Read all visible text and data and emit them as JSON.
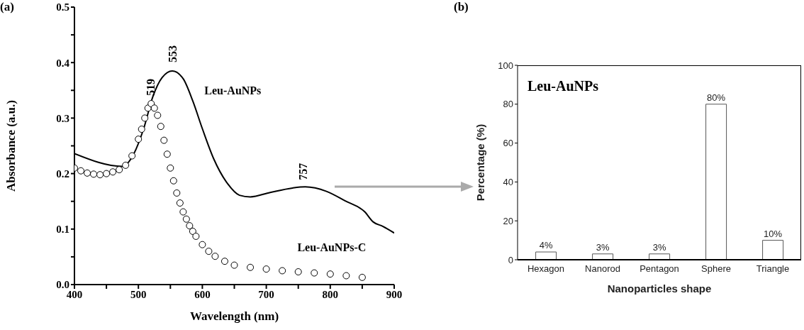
{
  "chart_data": [
    {
      "type": "line",
      "title": "(a)",
      "xlabel": "Wavelength (nm)",
      "ylabel": "Absorbance (a.u.)",
      "xlim": [
        400,
        900
      ],
      "xticks": [
        400,
        {
          "value": 450,
          "label": null
        },
        500,
        {
          "value": 550,
          "label": null
        },
        600,
        {
          "value": 650,
          "label": null
        },
        700,
        {
          "value": 750,
          "label": null
        },
        800,
        {
          "value": 850,
          "label": null
        },
        900
      ],
      "ylim": [
        0,
        0.5
      ],
      "yticks": [
        {
          "value": 0,
          "label": "0.0"
        },
        {
          "value": 0.05,
          "label": null
        },
        0.1,
        {
          "value": 0.15,
          "label": null
        },
        0.2,
        {
          "value": 0.25,
          "label": null
        },
        0.3,
        {
          "value": 0.35,
          "label": null
        },
        0.4,
        {
          "value": 0.45,
          "label": null
        },
        0.5
      ],
      "series": [
        {
          "name": "Leu-AuNPs",
          "type": "line",
          "color": "#000000",
          "marker": "none",
          "x": [
            400,
            475,
            493,
            508,
            523,
            537,
            553,
            570,
            585,
            600,
            618,
            640,
            658,
            675,
            706,
            741,
            761,
            794,
            823,
            854,
            867,
            882,
            900
          ],
          "values": [
            0.236,
            0.213,
            0.236,
            0.28,
            0.34,
            0.373,
            0.385,
            0.371,
            0.331,
            0.281,
            0.226,
            0.181,
            0.161,
            0.158,
            0.166,
            0.174,
            0.176,
            0.168,
            0.151,
            0.131,
            0.113,
            0.105,
            0.093
          ]
        },
        {
          "name": "Leu-AuNPs-C",
          "type": "scatter",
          "color": "#000000",
          "marker": "circle",
          "x": [
            400,
            410,
            420,
            430,
            440,
            450,
            460,
            470,
            480,
            490,
            500,
            505,
            510,
            515,
            520,
            525,
            530,
            535,
            540,
            545,
            550,
            555,
            560,
            565,
            570,
            575,
            580,
            585,
            590,
            600,
            610,
            620,
            635,
            650,
            675,
            700,
            725,
            750,
            775,
            800,
            825,
            850
          ],
          "values": [
            0.21,
            0.205,
            0.201,
            0.199,
            0.198,
            0.2,
            0.203,
            0.207,
            0.215,
            0.232,
            0.262,
            0.28,
            0.3,
            0.318,
            0.326,
            0.318,
            0.305,
            0.285,
            0.26,
            0.235,
            0.21,
            0.187,
            0.165,
            0.147,
            0.131,
            0.118,
            0.106,
            0.096,
            0.087,
            0.072,
            0.06,
            0.051,
            0.042,
            0.035,
            0.031,
            0.028,
            0.025,
            0.023,
            0.021,
            0.019,
            0.016,
            0.013
          ]
        }
      ],
      "annotations": [
        {
          "text": "519",
          "x": 519,
          "y": 0.33
        },
        {
          "text": "553",
          "x": 553,
          "y": 0.39
        },
        {
          "text": "757",
          "x": 757,
          "y": 0.178
        }
      ]
    },
    {
      "type": "bar",
      "title": "(b)",
      "xlabel": "Nanoparticles  shape",
      "ylabel": "Percentage   (%)",
      "categories": [
        "Hexagon",
        "Nanorod",
        "Pentagon",
        "Sphere",
        "Triangle"
      ],
      "values": [
        4,
        3,
        3,
        80,
        10
      ],
      "color": "#ffffff",
      "value_labels": [
        "4%",
        "3%",
        "3%",
        "80%",
        "10%"
      ],
      "ylim": [
        0,
        100
      ],
      "yticks": [
        0,
        20,
        40,
        60,
        80,
        100
      ],
      "annotations": [
        "Leu-AuNPs"
      ]
    }
  ]
}
